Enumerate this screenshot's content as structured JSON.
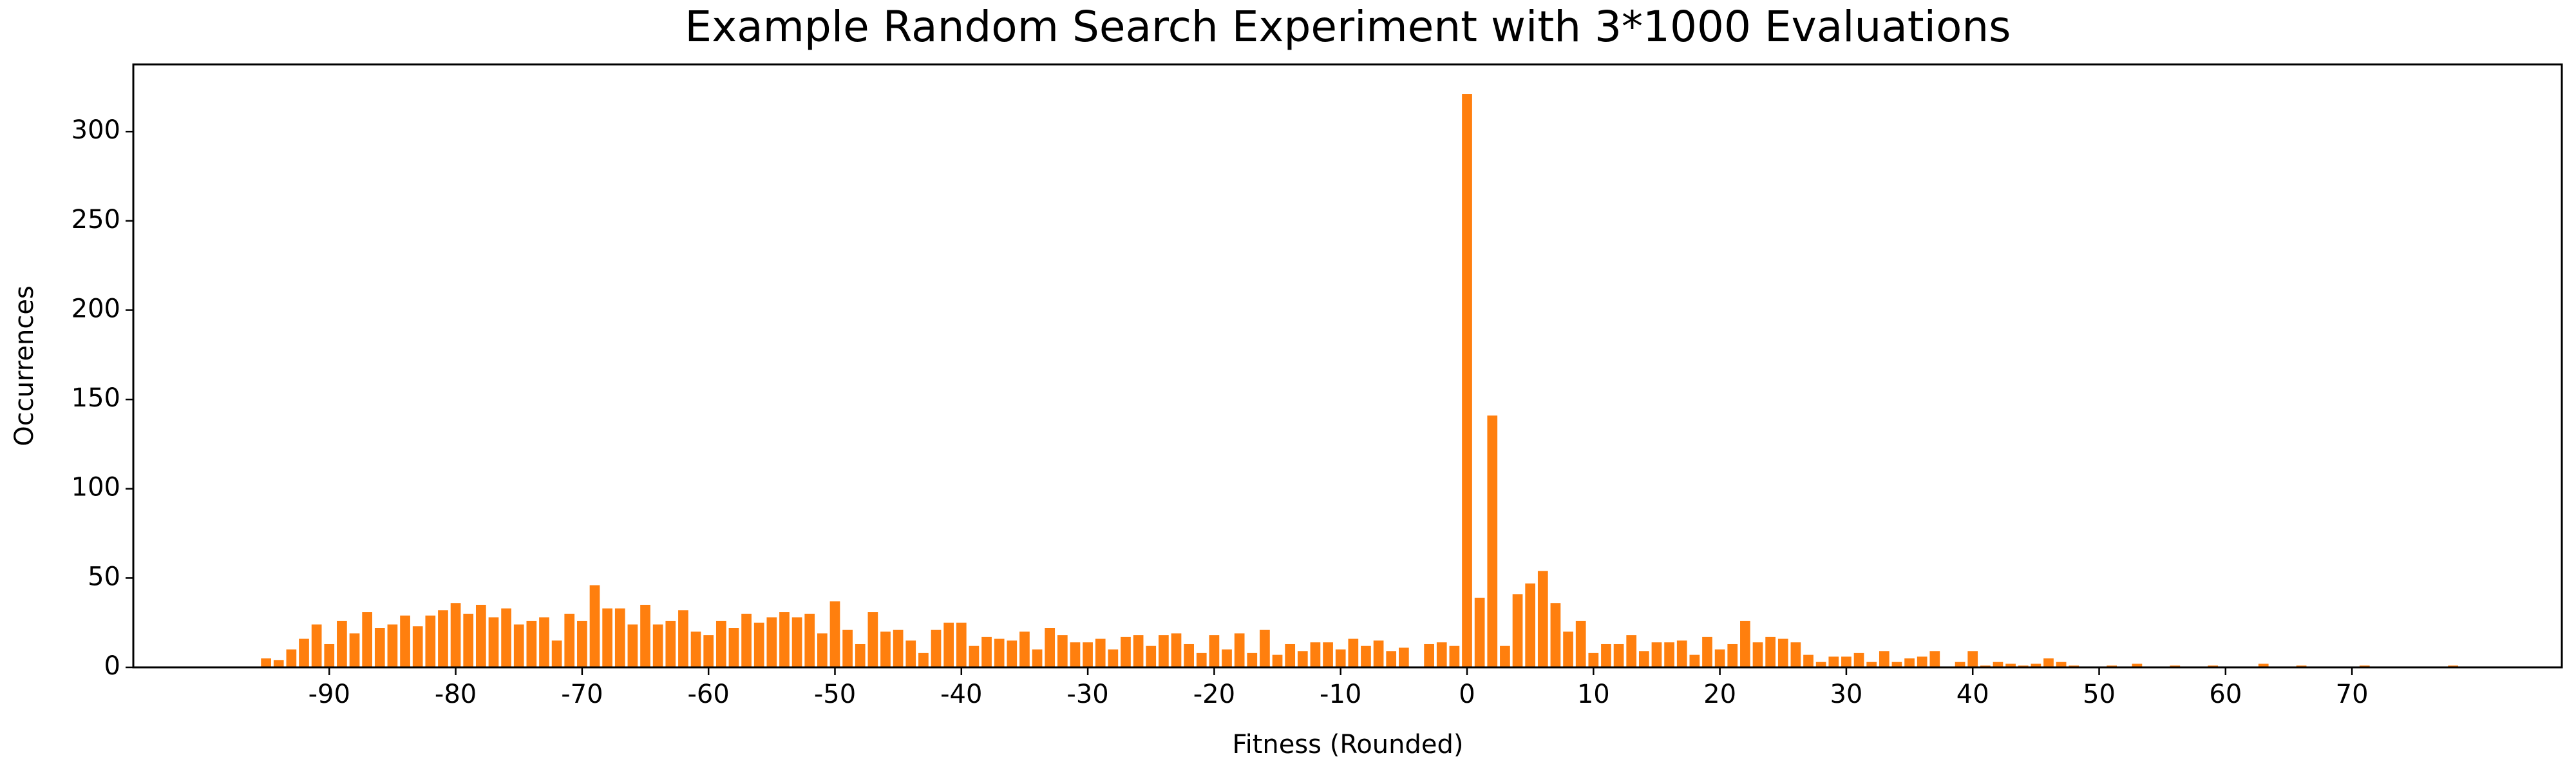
{
  "chart_data": {
    "type": "bar",
    "title": "Example Random Search Experiment with 3*1000 Evaluations",
    "x_label": "Fitness (Rounded)",
    "y_label": "Occurrences",
    "x": [
      -95,
      -94,
      -93,
      -92,
      -91,
      -90,
      -89,
      -88,
      -87,
      -86,
      -85,
      -84,
      -83,
      -82,
      -81,
      -80,
      -79,
      -78,
      -77,
      -76,
      -75,
      -74,
      -73,
      -72,
      -71,
      -70,
      -69,
      -68,
      -67,
      -66,
      -65,
      -64,
      -63,
      -62,
      -61,
      -60,
      -59,
      -58,
      -57,
      -56,
      -55,
      -54,
      -53,
      -52,
      -51,
      -50,
      -49,
      -48,
      -47,
      -46,
      -45,
      -44,
      -43,
      -42,
      -41,
      -40,
      -39,
      -38,
      -37,
      -36,
      -35,
      -34,
      -33,
      -32,
      -31,
      -30,
      -29,
      -28,
      -27,
      -26,
      -25,
      -24,
      -23,
      -22,
      -21,
      -20,
      -19,
      -18,
      -17,
      -16,
      -15,
      -14,
      -13,
      -12,
      -11,
      -10,
      -9,
      -8,
      -7,
      -6,
      -5,
      -3,
      -2,
      -1,
      0,
      1,
      2,
      3,
      4,
      5,
      6,
      7,
      8,
      9,
      10,
      11,
      12,
      13,
      14,
      15,
      16,
      17,
      18,
      19,
      20,
      21,
      22,
      23,
      24,
      25,
      26,
      27,
      28,
      29,
      30,
      31,
      32,
      33,
      34,
      35,
      36,
      37,
      39,
      40,
      41,
      42,
      43,
      44,
      45,
      46,
      47,
      48,
      51,
      53,
      56,
      59,
      63,
      66,
      71,
      78
    ],
    "values": [
      5,
      4,
      10,
      16,
      24,
      13,
      26,
      19,
      31,
      22,
      24,
      29,
      23,
      29,
      32,
      36,
      30,
      35,
      28,
      33,
      24,
      26,
      28,
      15,
      30,
      26,
      46,
      33,
      33,
      24,
      35,
      24,
      26,
      32,
      20,
      18,
      26,
      22,
      30,
      25,
      28,
      31,
      28,
      30,
      19,
      37,
      21,
      13,
      31,
      20,
      21,
      15,
      8,
      21,
      25,
      25,
      12,
      17,
      16,
      15,
      20,
      10,
      22,
      18,
      14,
      14,
      16,
      10,
      17,
      18,
      12,
      18,
      19,
      13,
      8,
      18,
      10,
      19,
      8,
      21,
      7,
      13,
      9,
      14,
      14,
      10,
      16,
      12,
      15,
      9,
      11,
      13,
      14,
      12,
      321,
      39,
      141,
      12,
      41,
      47,
      54,
      36,
      20,
      26,
      8,
      13,
      13,
      18,
      9,
      14,
      14,
      15,
      7,
      17,
      10,
      13,
      26,
      14,
      17,
      16,
      14,
      7,
      3,
      6,
      6,
      8,
      3,
      9,
      3,
      5,
      6,
      9,
      3,
      9,
      1,
      3,
      2,
      1,
      2,
      5,
      3,
      1,
      1,
      2,
      1,
      1,
      2,
      1,
      1,
      1
    ],
    "color": "#ff7f0e",
    "bar_width": 0.8,
    "xlim": [
      -105.5,
      86.6
    ],
    "ylim": [
      0,
      337.6
    ],
    "xticks": [
      -90,
      -80,
      -70,
      -60,
      -50,
      -40,
      -30,
      -20,
      -10,
      0,
      10,
      20,
      30,
      40,
      50,
      60,
      70
    ],
    "yticks": [
      0,
      50,
      100,
      150,
      200,
      250,
      300
    ],
    "grid": false
  }
}
